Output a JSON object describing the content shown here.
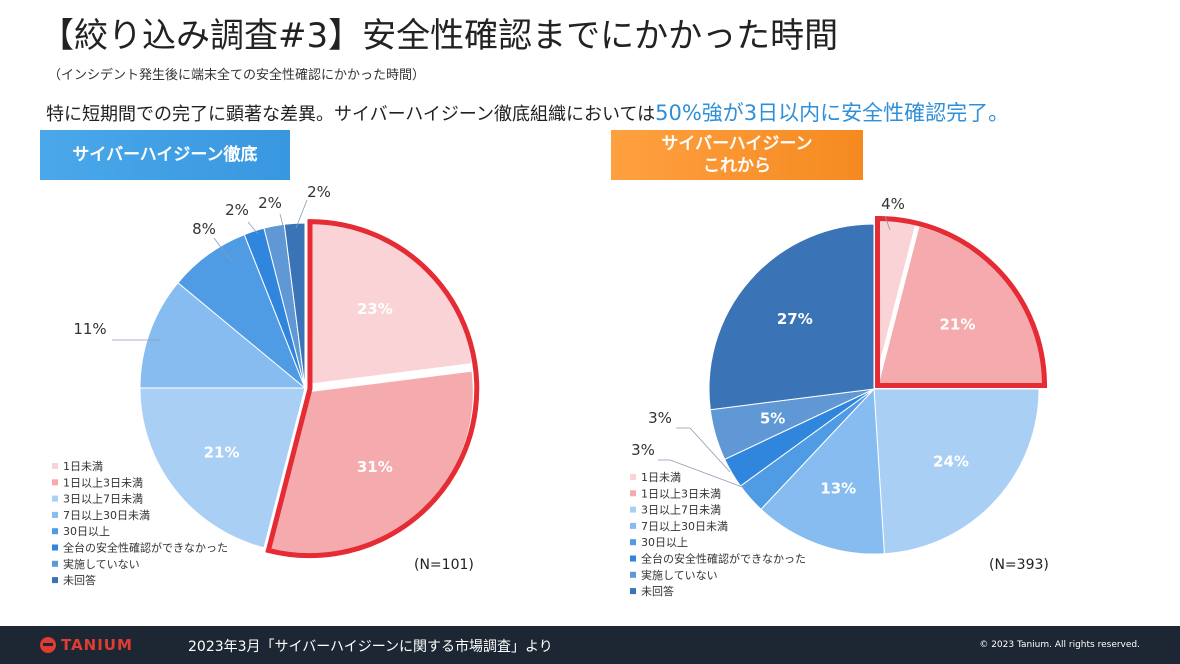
{
  "header": {
    "title": "【絞り込み調査#3】安全性確認までにかかった時間",
    "subtitle": "（インシデント発生後に端末全ての安全性確認にかかった時間）",
    "lead_text": "特に短期間での完了に顕著な差異。サイバーハイジーン徹底組織においては",
    "lead_highlight": "50%強が3日以内に安全性確認完了。"
  },
  "badges": {
    "left": "サイバーハイジーン徹底",
    "right_line1": "サイバーハイジーン",
    "right_line2": "これから"
  },
  "colors": {
    "s0": "#f9d3d5",
    "s1": "#f5aaae",
    "s2": "#a9cff5",
    "s3": "#86bcf0",
    "s4": "#4f9be4",
    "s5": "#2f86dc",
    "s6": "#5f98d4",
    "s7": "#3a73b6",
    "highlight": "#e52b34"
  },
  "chart_data": [
    {
      "type": "pie",
      "title": "サイバーハイジーン徹底",
      "n_label": "(N=101)",
      "categories": [
        "1日未満",
        "1日以上3日未満",
        "3日以上7日未満",
        "7日以上30日未満",
        "30日以上",
        "全台の安全性確認ができなかった",
        "実施していない",
        "未回答"
      ],
      "values": [
        23,
        31,
        21,
        11,
        8,
        2,
        2,
        2
      ],
      "labels": [
        "23%",
        "31%",
        "21%",
        "11%",
        "8%",
        "2%",
        "2%",
        "2%"
      ],
      "highlight_categories": [
        "1日未満",
        "1日以上3日未満"
      ],
      "legend_position": "bottom-left"
    },
    {
      "type": "pie",
      "title": "サイバーハイジーンこれから",
      "n_label": "(N=393)",
      "categories": [
        "1日未満",
        "1日以上3日未満",
        "3日以上7日未満",
        "7日以上30日未満",
        "30日以上",
        "全台の安全性確認ができなかった",
        "実施していない",
        "未回答"
      ],
      "values": [
        4,
        21,
        24,
        13,
        3,
        3,
        5,
        27
      ],
      "labels": [
        "4%",
        "21%",
        "24%",
        "13%",
        "3%",
        "3%",
        "5%",
        "27%"
      ],
      "highlight_categories": [
        "1日未満",
        "1日以上3日未満"
      ],
      "legend_position": "bottom-left"
    }
  ],
  "footer": {
    "logo": "TANIUM",
    "source": "2023年3月「サイバーハイジーンに関する市場調査」より",
    "copyright": "© 2023 Tanium. All rights reserved."
  }
}
